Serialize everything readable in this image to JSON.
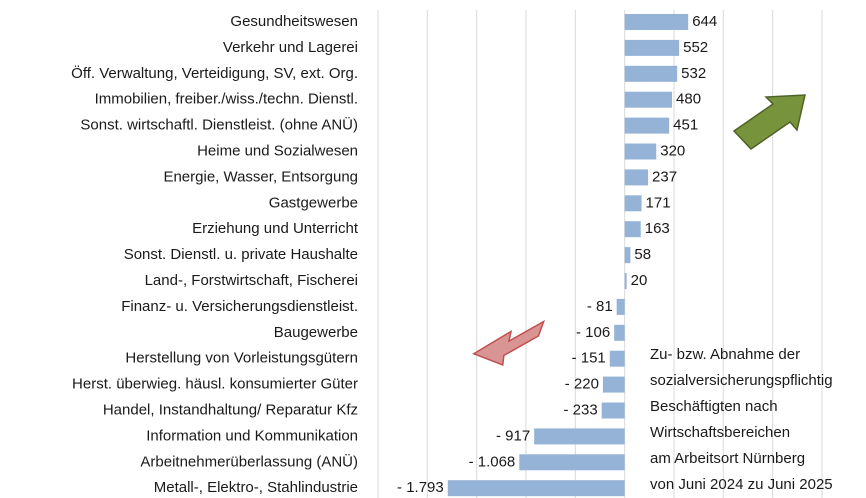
{
  "chart_data": {
    "type": "barh",
    "categories": [
      "Gesundheitswesen",
      "Verkehr und Lagerei",
      "Öff. Verwaltung, Verteidigung, SV, ext. Org.",
      "Immobilien, freiber./wiss./techn. Dienstl.",
      "Sonst. wirtschaftl. Dienstleist. (ohne ANÜ)",
      "Heime und Sozialwesen",
      "Energie, Wasser, Entsorgung",
      "Gastgewerbe",
      "Erziehung und Unterricht",
      "Sonst. Dienstl. u. private Haushalte",
      "Land-, Forstwirtschaft, Fischerei",
      "Finanz- u. Versicherungsdienstleist.",
      "Baugewerbe",
      "Herstellung von Vorleistungsgütern",
      "Herst. überwieg. häusl. konsumierter Güter",
      "Handel, Instandhaltung/ Reparatur  Kfz",
      "Information und Kommunikation",
      "Arbeitnehmerüberlassung (ANÜ)",
      "Metall-, Elektro-, Stahlindustrie"
    ],
    "values": [
      644,
      552,
      532,
      480,
      451,
      320,
      237,
      171,
      163,
      58,
      20,
      -81,
      -106,
      -151,
      -220,
      -233,
      -917,
      -1068,
      -1793
    ],
    "value_labels": [
      "644",
      "552",
      "532",
      "480",
      "451",
      "320",
      "237",
      "171",
      "163",
      "58",
      "20",
      "- 81",
      "- 106",
      "- 151",
      "- 220",
      "- 233",
      "- 917",
      "- 1.068",
      "- 1.793"
    ],
    "color": "#95b3d7",
    "xlim": [
      -2500,
      2000
    ],
    "xticks": [
      -2500,
      -2000,
      -1500,
      -1000,
      -500,
      0,
      500,
      1000,
      1500,
      2000
    ],
    "grid": true,
    "annotation": [
      "Zu- bzw. Abnahme der",
      "sozialversicherungspflichtig",
      "Beschäftigten nach",
      "Wirtschaftsbereichen",
      "am Arbeitsort Nürnberg",
      "von Juni 2024 zu Juni 2025"
    ]
  }
}
